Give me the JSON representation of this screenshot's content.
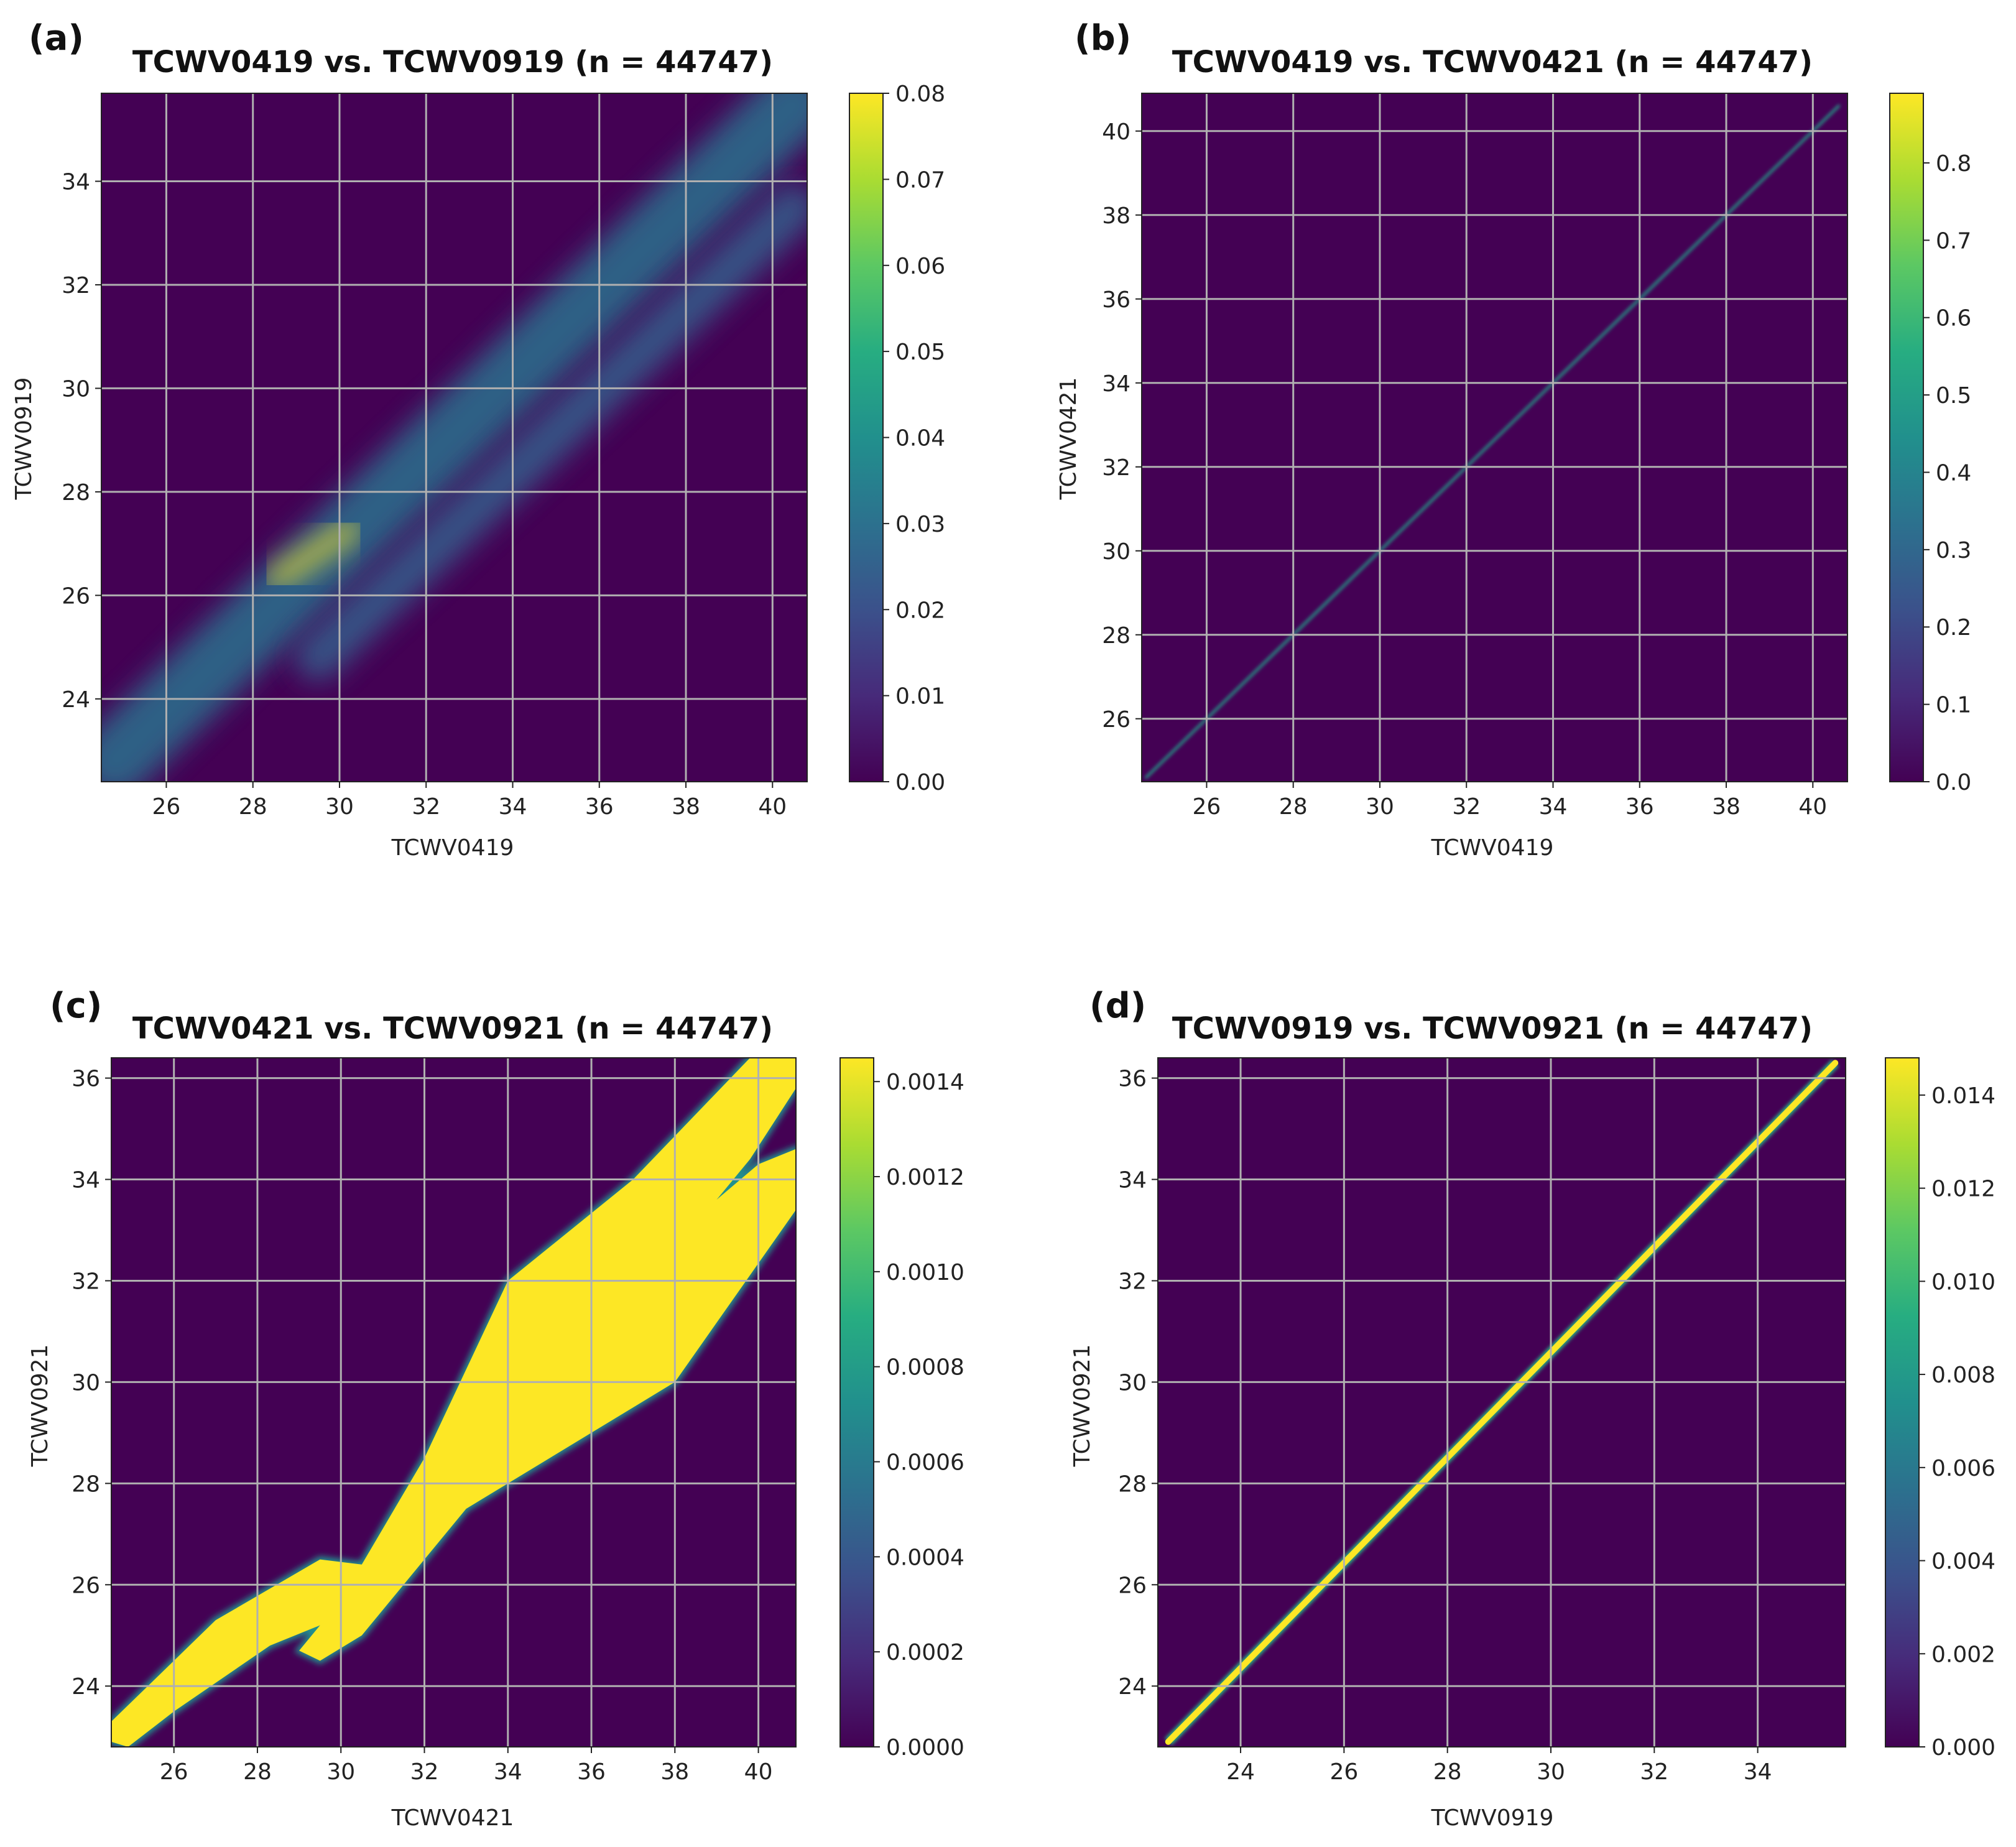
{
  "figure": {
    "background": "#ffffff"
  },
  "colormap": {
    "name": "viridis",
    "stops": [
      "#440154",
      "#472a7a",
      "#3b518b",
      "#2c718e",
      "#21908d",
      "#27ad81",
      "#5cc863",
      "#aadc32",
      "#fde725"
    ]
  },
  "chart_data": [
    {
      "type": "heatmap",
      "panel_label": "(a)",
      "title": "TCWV0419 vs. TCWV0919 (n = 44747)",
      "xlabel": "TCWV0419",
      "ylabel": "TCWV0919",
      "xlim": [
        24.5,
        40.8
      ],
      "ylim": [
        22.4,
        35.7
      ],
      "xticks": [
        26,
        28,
        30,
        32,
        34,
        36,
        38,
        40
      ],
      "yticks": [
        24,
        26,
        28,
        30,
        32,
        34
      ],
      "colorbar": {
        "min": 0.0,
        "max": 0.08,
        "ticks": [
          0.0,
          0.01,
          0.02,
          0.03,
          0.04,
          0.05,
          0.06,
          0.07,
          0.08
        ],
        "tick_labels": [
          "0.00",
          "0.01",
          "0.02",
          "0.03",
          "0.04",
          "0.05",
          "0.06",
          "0.07",
          "0.08"
        ]
      },
      "density_features": [
        {
          "name": "main-ridge",
          "from": [
            24.8,
            22.8
          ],
          "to": [
            40.5,
            35.5
          ],
          "width": 1.4,
          "peak": 0.03
        },
        {
          "name": "hotspot",
          "from": [
            28.5,
            26.3
          ],
          "to": [
            30.3,
            27.3
          ],
          "width": 0.35,
          "peak": 0.08
        },
        {
          "name": "lower-ridge",
          "from": [
            29.5,
            24.8
          ],
          "to": [
            40.5,
            33.5
          ],
          "width": 0.9,
          "peak": 0.025
        }
      ]
    },
    {
      "type": "heatmap",
      "panel_label": "(b)",
      "title": "TCWV0419 vs. TCWV0421 (n = 44747)",
      "xlabel": "TCWV0419",
      "ylabel": "TCWV0421",
      "xlim": [
        24.5,
        40.8
      ],
      "ylim": [
        24.5,
        40.9
      ],
      "xticks": [
        26,
        28,
        30,
        32,
        34,
        36,
        38,
        40
      ],
      "yticks": [
        26,
        28,
        30,
        32,
        34,
        36,
        38,
        40
      ],
      "colorbar": {
        "min": 0.0,
        "max": 0.89,
        "ticks": [
          0.0,
          0.1,
          0.2,
          0.3,
          0.4,
          0.5,
          0.6,
          0.7,
          0.8
        ],
        "tick_labels": [
          "0.0",
          "0.1",
          "0.2",
          "0.3",
          "0.4",
          "0.5",
          "0.6",
          "0.7",
          "0.8"
        ]
      },
      "density_features": [
        {
          "name": "identity-line",
          "from": [
            24.6,
            24.6
          ],
          "to": [
            40.6,
            40.6
          ],
          "width": 0.06,
          "peak": 0.5
        }
      ]
    },
    {
      "type": "heatmap",
      "panel_label": "(c)",
      "title": "TCWV0421 vs. TCWV0921 (n = 44747)",
      "xlabel": "TCWV0421",
      "ylabel": "TCWV0921",
      "xlim": [
        24.5,
        40.9
      ],
      "ylim": [
        22.8,
        36.4
      ],
      "xticks": [
        26,
        28,
        30,
        32,
        34,
        36,
        38,
        40
      ],
      "yticks": [
        24,
        26,
        28,
        30,
        32,
        34,
        36
      ],
      "colorbar": {
        "min": 0.0,
        "max": 0.00145,
        "ticks": [
          0.0,
          0.0002,
          0.0004,
          0.0006,
          0.0008,
          0.001,
          0.0012,
          0.0014
        ],
        "tick_labels": [
          "0.0000",
          "0.0002",
          "0.0004",
          "0.0006",
          "0.0008",
          "0.0010",
          "0.0012",
          "0.0014"
        ]
      },
      "saturated_region": [
        [
          24.5,
          22.9
        ],
        [
          24.5,
          23.3
        ],
        [
          27.0,
          25.3
        ],
        [
          29.5,
          26.5
        ],
        [
          30.5,
          26.4
        ],
        [
          32.0,
          28.5
        ],
        [
          34.0,
          32.0
        ],
        [
          37.0,
          34.0
        ],
        [
          39.8,
          36.4
        ],
        [
          40.9,
          36.4
        ],
        [
          40.9,
          35.8
        ],
        [
          39.8,
          34.4
        ],
        [
          39.0,
          33.6
        ],
        [
          40.0,
          34.3
        ],
        [
          40.9,
          34.6
        ],
        [
          40.9,
          33.4
        ],
        [
          38.0,
          30.0
        ],
        [
          35.0,
          28.5
        ],
        [
          33.0,
          27.5
        ],
        [
          30.5,
          25.0
        ],
        [
          29.5,
          24.5
        ],
        [
          29.0,
          24.7
        ],
        [
          29.5,
          25.2
        ],
        [
          28.3,
          24.8
        ],
        [
          26.0,
          23.5
        ],
        [
          24.9,
          22.8
        ]
      ]
    },
    {
      "type": "heatmap",
      "panel_label": "(d)",
      "title": "TCWV0919 vs. TCWV0921 (n = 44747)",
      "xlabel": "TCWV0919",
      "ylabel": "TCWV0921",
      "xlim": [
        22.4,
        35.7
      ],
      "ylim": [
        22.8,
        36.4
      ],
      "xticks": [
        24,
        26,
        28,
        30,
        32,
        34
      ],
      "yticks": [
        24,
        26,
        28,
        30,
        32,
        34,
        36
      ],
      "colorbar": {
        "min": 0.0,
        "max": 0.0148,
        "ticks": [
          0.0,
          0.002,
          0.004,
          0.006,
          0.008,
          0.01,
          0.012,
          0.014
        ],
        "tick_labels": [
          "0.000",
          "0.002",
          "0.004",
          "0.006",
          "0.008",
          "0.010",
          "0.012",
          "0.014"
        ]
      },
      "saturated_line": {
        "from": [
          22.6,
          22.9
        ],
        "to": [
          35.5,
          36.3
        ],
        "width": 0.12
      }
    }
  ]
}
